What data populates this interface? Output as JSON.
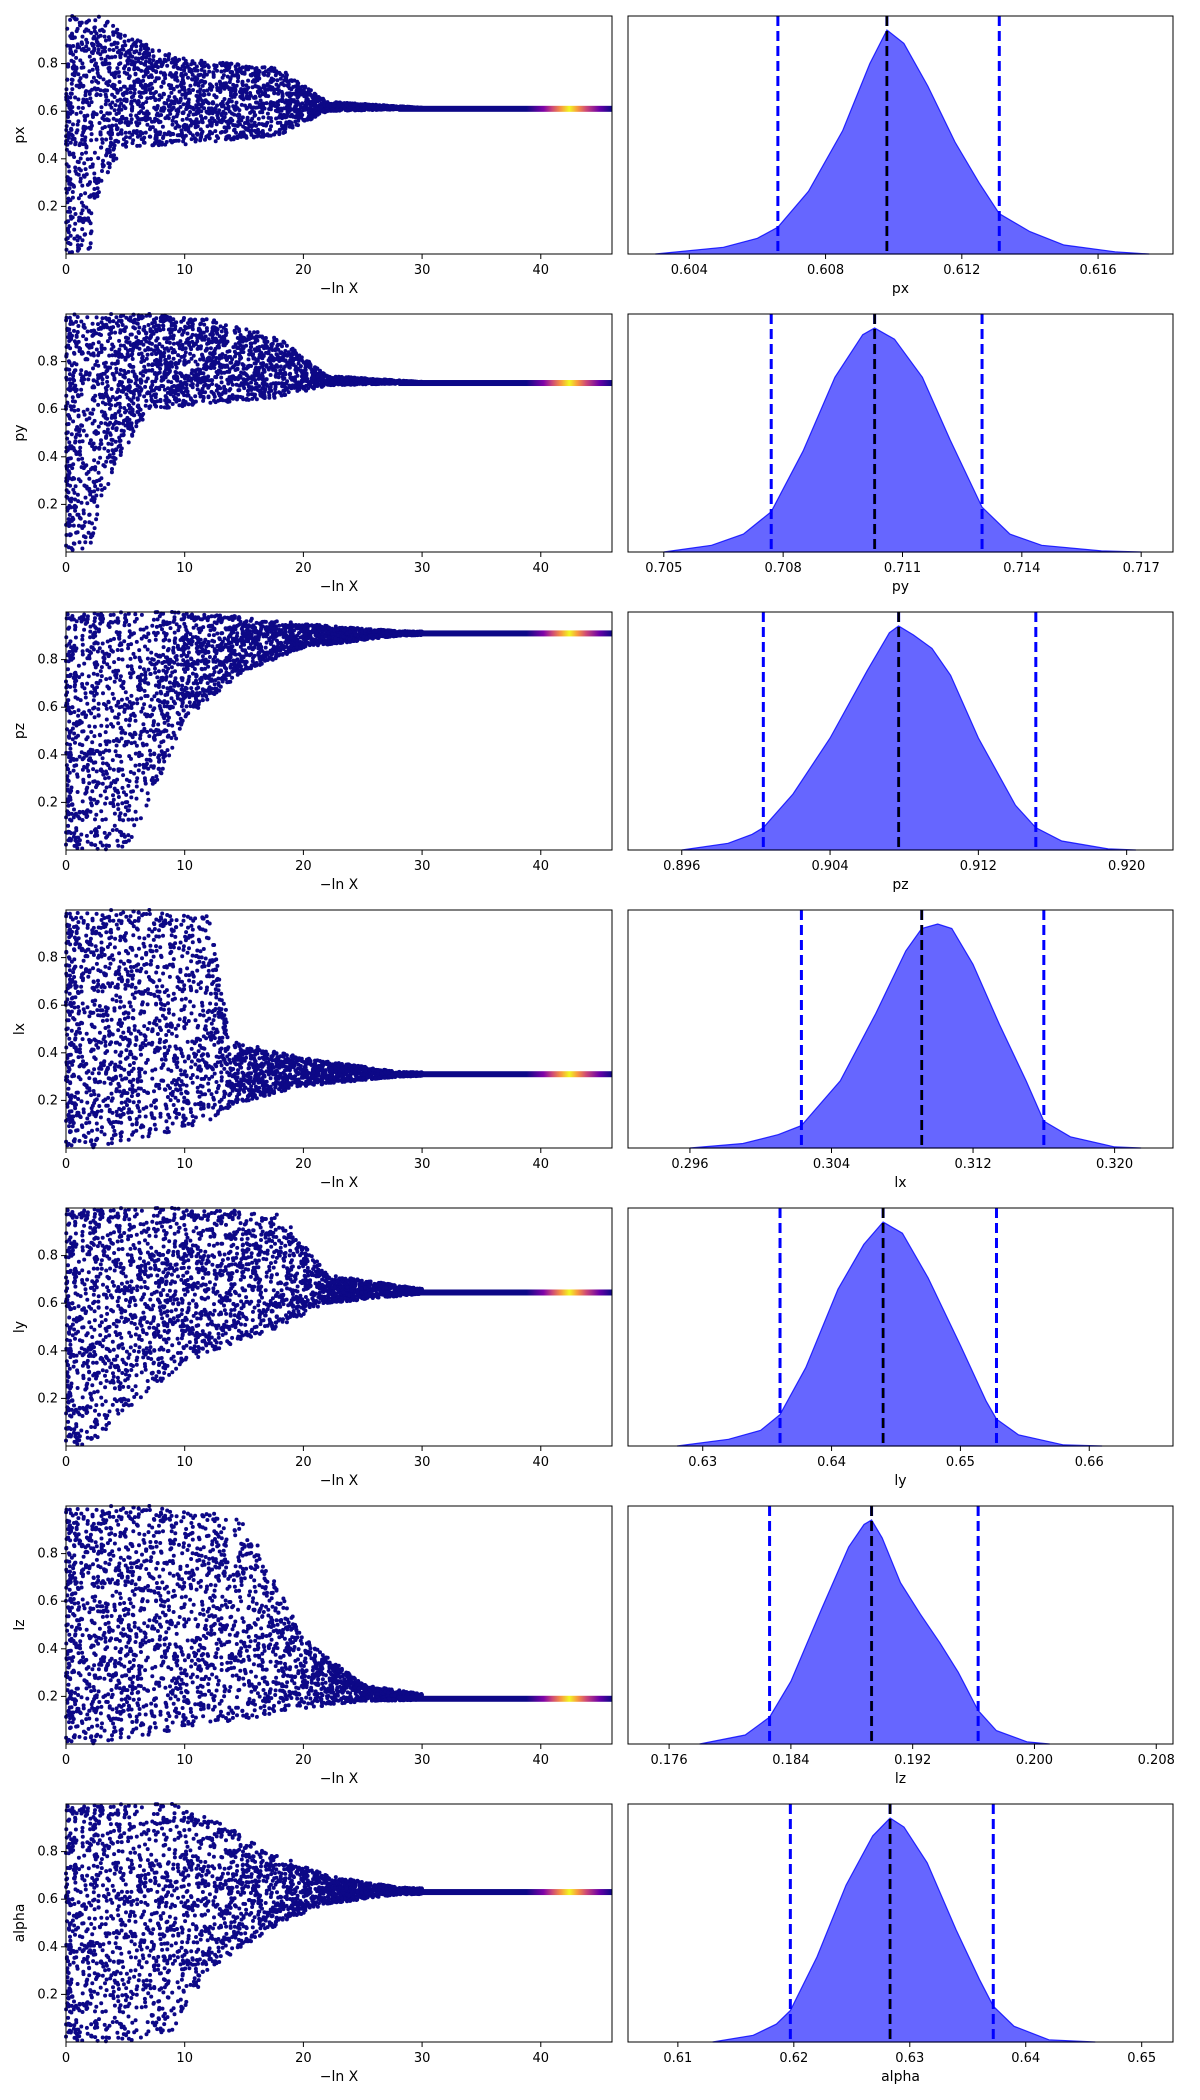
{
  "figure": {
    "background": "#ffffff"
  },
  "colors": {
    "trace_low": "#0d0887",
    "trace_mid": "#cc4778",
    "trace_high": "#f0f921",
    "posterior_fill": "#0000ff",
    "posterior_alpha": 0.6,
    "quantile_line": "#0000ff",
    "median_line": "#000000"
  },
  "chart_data": [
    {
      "type": "scatter",
      "name": "trace-px",
      "xlabel": "−ln X",
      "ylabel": "px",
      "xlim": [
        0,
        46
      ],
      "ylim": [
        0.0,
        1.0
      ],
      "xticks": [
        "0",
        "10",
        "20",
        "30",
        "40"
      ],
      "yticks": [
        "0.2",
        "0.4",
        "0.6",
        "0.8"
      ],
      "trace": {
        "converged": 0.61,
        "band_low": [
          0.0,
          0.02,
          0.3,
          0.45,
          0.46,
          0.5,
          0.6,
          0.61
        ],
        "band_high": [
          1.0,
          1.0,
          1.0,
          0.92,
          0.82,
          0.78,
          0.64,
          0.615
        ],
        "band_x": [
          0,
          2,
          3,
          5,
          10,
          18,
          22,
          30
        ]
      }
    },
    {
      "type": "area",
      "name": "posterior-px",
      "xlabel": "px",
      "ylabel": "",
      "xlim": [
        0.6022,
        0.6182
      ],
      "xticks": [
        "0.604",
        "0.608",
        "0.612",
        "0.616"
      ],
      "quantiles": [
        0.6066,
        0.6098,
        0.6131
      ],
      "density": {
        "x": [
          0.603,
          0.605,
          0.606,
          0.6066,
          0.6075,
          0.6085,
          0.6093,
          0.6098,
          0.6103,
          0.611,
          0.6118,
          0.6125,
          0.6131,
          0.614,
          0.615,
          0.6165,
          0.6175
        ],
        "y": [
          0.0,
          0.03,
          0.07,
          0.12,
          0.28,
          0.55,
          0.85,
          1.0,
          0.94,
          0.75,
          0.5,
          0.32,
          0.18,
          0.1,
          0.04,
          0.01,
          0.0
        ]
      }
    },
    {
      "type": "scatter",
      "name": "trace-py",
      "xlabel": "−ln X",
      "ylabel": "py",
      "xlim": [
        0,
        46
      ],
      "ylim": [
        0.0,
        1.0
      ],
      "xticks": [
        "0",
        "10",
        "20",
        "30",
        "40"
      ],
      "yticks": [
        "0.2",
        "0.4",
        "0.6",
        "0.8"
      ],
      "trace": {
        "converged": 0.71,
        "band_low": [
          0.0,
          0.02,
          0.35,
          0.6,
          0.62,
          0.65,
          0.7,
          0.71
        ],
        "band_high": [
          1.0,
          1.0,
          1.0,
          1.0,
          0.98,
          0.9,
          0.74,
          0.715
        ],
        "band_x": [
          0,
          2,
          4,
          7,
          12,
          18,
          22,
          30
        ]
      }
    },
    {
      "type": "area",
      "name": "posterior-py",
      "xlabel": "py",
      "ylabel": "",
      "xlim": [
        0.7041,
        0.7178
      ],
      "xticks": [
        "0.705",
        "0.708",
        "0.711",
        "0.714",
        "0.717"
      ],
      "quantiles": [
        0.7077,
        0.7103,
        0.713
      ],
      "density": {
        "x": [
          0.705,
          0.7062,
          0.707,
          0.7077,
          0.7085,
          0.7093,
          0.71,
          0.7103,
          0.7108,
          0.7115,
          0.7122,
          0.713,
          0.7137,
          0.7145,
          0.716,
          0.717
        ],
        "y": [
          0.0,
          0.03,
          0.08,
          0.18,
          0.45,
          0.78,
          0.97,
          1.0,
          0.95,
          0.78,
          0.5,
          0.2,
          0.08,
          0.03,
          0.005,
          0.0
        ]
      }
    },
    {
      "type": "scatter",
      "name": "trace-pz",
      "xlabel": "−ln X",
      "ylabel": "pz",
      "xlim": [
        0,
        46
      ],
      "ylim": [
        0.0,
        1.0
      ],
      "xticks": [
        "0",
        "10",
        "20",
        "30",
        "40"
      ],
      "yticks": [
        "0.2",
        "0.4",
        "0.6",
        "0.8"
      ],
      "trace": {
        "converged": 0.91,
        "band_low": [
          0.0,
          0.0,
          0.2,
          0.55,
          0.75,
          0.85,
          0.9,
          0.91
        ],
        "band_high": [
          1.0,
          1.0,
          1.0,
          1.0,
          0.98,
          0.95,
          0.92,
          0.912
        ],
        "band_x": [
          0,
          5,
          7,
          10,
          15,
          20,
          28,
          35
        ]
      }
    },
    {
      "type": "area",
      "name": "posterior-pz",
      "xlabel": "pz",
      "ylabel": "",
      "xlim": [
        0.8931,
        0.9225
      ],
      "xticks": [
        "0.896",
        "0.904",
        "0.912",
        "0.920"
      ],
      "quantiles": [
        0.9004,
        0.9077,
        0.9151
      ],
      "density": {
        "x": [
          0.896,
          0.8985,
          0.8998,
          0.9004,
          0.902,
          0.904,
          0.906,
          0.9072,
          0.9077,
          0.9085,
          0.9095,
          0.9105,
          0.912,
          0.914,
          0.9151,
          0.9165,
          0.919,
          0.9205
        ],
        "y": [
          0.0,
          0.03,
          0.07,
          0.1,
          0.25,
          0.5,
          0.8,
          0.97,
          1.0,
          0.96,
          0.9,
          0.78,
          0.5,
          0.2,
          0.1,
          0.04,
          0.005,
          0.0
        ]
      }
    },
    {
      "type": "scatter",
      "name": "trace-lx",
      "xlabel": "−ln X",
      "ylabel": "lx",
      "xlim": [
        0,
        46
      ],
      "ylim": [
        0.0,
        1.0
      ],
      "xticks": [
        "0",
        "10",
        "20",
        "30",
        "40"
      ],
      "yticks": [
        "0.2",
        "0.4",
        "0.6",
        "0.8"
      ],
      "trace": {
        "converged": 0.31,
        "band_low": [
          0.0,
          0.0,
          0.05,
          0.1,
          0.18,
          0.26,
          0.3,
          0.305
        ],
        "band_high": [
          1.0,
          1.0,
          1.0,
          0.98,
          0.45,
          0.38,
          0.32,
          0.315
        ],
        "band_x": [
          0,
          3,
          7,
          12,
          14,
          20,
          28,
          35
        ]
      }
    },
    {
      "type": "area",
      "name": "posterior-lx",
      "xlabel": "lx",
      "ylabel": "",
      "xlim": [
        0.2925,
        0.3233
      ],
      "xticks": [
        "0.296",
        "0.304",
        "0.312",
        "0.320"
      ],
      "quantiles": [
        0.3023,
        0.3091,
        0.316
      ],
      "density": {
        "x": [
          0.296,
          0.299,
          0.301,
          0.3023,
          0.3045,
          0.3065,
          0.3082,
          0.3091,
          0.31,
          0.3108,
          0.312,
          0.3135,
          0.315,
          0.316,
          0.3175,
          0.32,
          0.3215
        ],
        "y": [
          0.0,
          0.02,
          0.06,
          0.1,
          0.3,
          0.6,
          0.88,
          0.98,
          1.0,
          0.98,
          0.82,
          0.55,
          0.3,
          0.12,
          0.05,
          0.005,
          0.0
        ]
      }
    },
    {
      "type": "scatter",
      "name": "trace-ly",
      "xlabel": "−ln X",
      "ylabel": "ly",
      "xlim": [
        0,
        46
      ],
      "ylim": [
        0.0,
        1.0
      ],
      "xticks": [
        "0",
        "10",
        "20",
        "30",
        "40"
      ],
      "yticks": [
        "0.2",
        "0.4",
        "0.6",
        "0.8"
      ],
      "trace": {
        "converged": 0.645,
        "band_low": [
          0.0,
          0.0,
          0.15,
          0.35,
          0.5,
          0.6,
          0.64,
          0.642
        ],
        "band_high": [
          1.0,
          1.0,
          1.0,
          1.0,
          0.98,
          0.72,
          0.66,
          0.65
        ],
        "band_x": [
          0,
          2,
          5,
          10,
          18,
          22,
          30,
          35
        ]
      }
    },
    {
      "type": "area",
      "name": "posterior-ly",
      "xlabel": "ly",
      "ylabel": "",
      "xlim": [
        0.6242,
        0.6665
      ],
      "xticks": [
        "0.63",
        "0.64",
        "0.65",
        "0.66"
      ],
      "quantiles": [
        0.636,
        0.644,
        0.6528
      ],
      "density": {
        "x": [
          0.628,
          0.632,
          0.6345,
          0.636,
          0.638,
          0.6405,
          0.6425,
          0.644,
          0.6455,
          0.6475,
          0.65,
          0.652,
          0.6528,
          0.6545,
          0.658,
          0.661
        ],
        "y": [
          0.0,
          0.03,
          0.07,
          0.14,
          0.35,
          0.7,
          0.9,
          1.0,
          0.95,
          0.75,
          0.45,
          0.2,
          0.12,
          0.05,
          0.005,
          0.0
        ]
      }
    },
    {
      "type": "scatter",
      "name": "trace-lz",
      "xlabel": "−ln X",
      "ylabel": "lz",
      "xlim": [
        0,
        46
      ],
      "ylim": [
        0.0,
        1.0
      ],
      "xticks": [
        "0",
        "10",
        "20",
        "30",
        "40"
      ],
      "yticks": [
        "0.2",
        "0.4",
        "0.6",
        "0.8"
      ],
      "trace": {
        "converged": 0.19,
        "band_low": [
          0.0,
          0.0,
          0.05,
          0.1,
          0.15,
          0.18,
          0.185,
          0.188
        ],
        "band_high": [
          1.0,
          1.0,
          1.0,
          0.95,
          0.45,
          0.25,
          0.21,
          0.195
        ],
        "band_x": [
          0,
          3,
          8,
          15,
          20,
          25,
          30,
          35
        ]
      }
    },
    {
      "type": "area",
      "name": "posterior-lz",
      "xlabel": "lz",
      "ylabel": "",
      "xlim": [
        0.1733,
        0.2091
      ],
      "xticks": [
        "0.176",
        "0.184",
        "0.192",
        "0.200",
        "0.208"
      ],
      "quantiles": [
        0.1826,
        0.1893,
        0.1963
      ],
      "density": {
        "x": [
          0.178,
          0.181,
          0.1826,
          0.184,
          0.186,
          0.1878,
          0.1888,
          0.1893,
          0.19,
          0.1912,
          0.1925,
          0.1938,
          0.195,
          0.1963,
          0.1975,
          0.1995,
          0.201
        ],
        "y": [
          0.0,
          0.04,
          0.12,
          0.28,
          0.6,
          0.88,
          0.98,
          1.0,
          0.92,
          0.72,
          0.58,
          0.45,
          0.32,
          0.15,
          0.06,
          0.01,
          0.0
        ]
      }
    },
    {
      "type": "scatter",
      "name": "trace-alpha",
      "xlabel": "−ln X",
      "ylabel": "alpha",
      "xlim": [
        0,
        46
      ],
      "ylim": [
        0.0,
        1.0
      ],
      "xticks": [
        "0",
        "10",
        "20",
        "30",
        "40"
      ],
      "yticks": [
        "0.2",
        "0.4",
        "0.6",
        "0.8"
      ],
      "trace": {
        "converged": 0.63,
        "band_low": [
          0.0,
          0.0,
          0.05,
          0.3,
          0.5,
          0.58,
          0.62,
          0.625
        ],
        "band_high": [
          1.0,
          1.0,
          1.0,
          0.95,
          0.78,
          0.7,
          0.65,
          0.635
        ],
        "band_x": [
          0,
          5,
          9,
          12,
          18,
          22,
          28,
          35
        ]
      }
    },
    {
      "type": "area",
      "name": "posterior-alpha",
      "xlabel": "alpha",
      "ylabel": "",
      "xlim": [
        0.6057,
        0.6527
      ],
      "xticks": [
        "0.61",
        "0.62",
        "0.63",
        "0.64",
        "0.65"
      ],
      "quantiles": [
        0.6197,
        0.6283,
        0.6372
      ],
      "density": {
        "x": [
          0.613,
          0.6165,
          0.6185,
          0.6197,
          0.622,
          0.6245,
          0.6268,
          0.6283,
          0.6295,
          0.6315,
          0.634,
          0.636,
          0.6372,
          0.639,
          0.642,
          0.646
        ],
        "y": [
          0.0,
          0.03,
          0.08,
          0.14,
          0.38,
          0.7,
          0.92,
          1.0,
          0.96,
          0.8,
          0.5,
          0.28,
          0.16,
          0.07,
          0.01,
          0.0
        ]
      }
    }
  ]
}
